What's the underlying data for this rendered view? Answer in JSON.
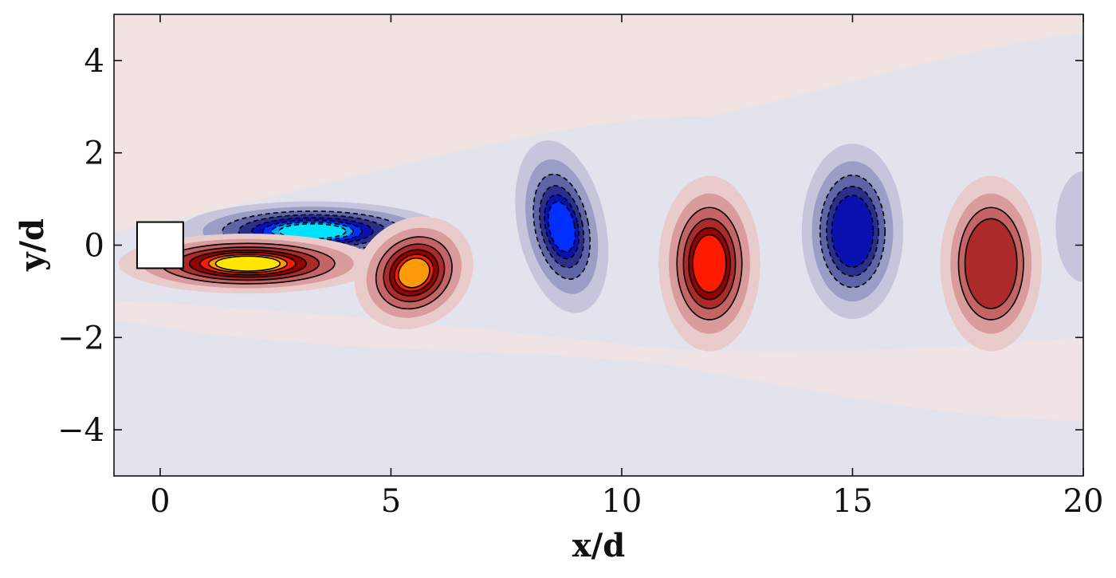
{
  "chart_data": {
    "type": "heatmap",
    "xlabel": "x/d",
    "ylabel": "y/d",
    "xlim": [
      -1,
      20
    ],
    "ylim": [
      -5,
      5
    ],
    "xticks": [
      0,
      5,
      10,
      15,
      20
    ],
    "xtick_labels": [
      "0",
      "5",
      "10",
      "15",
      "20"
    ],
    "yticks": [
      4,
      2,
      0,
      -2,
      -4
    ],
    "ytick_labels": [
      "4",
      "2",
      "0",
      "−2",
      "−4"
    ],
    "grid": false,
    "legend": "none",
    "obstacle": {
      "shape": "square",
      "x": [
        -0.5,
        0.5
      ],
      "y": [
        -0.5,
        0.5
      ]
    },
    "colors": {
      "positive_background": "#f2e3e3",
      "negative_background": "#e2e3ed",
      "positive_ramp": [
        "#e9cbcb",
        "#d99b9b",
        "#c46464",
        "#ad2a2a",
        "#950000",
        "#ff1a00",
        "#ff9a0a",
        "#ffe600"
      ],
      "negative_ramp": [
        "#c5c6dc",
        "#9a9dc5",
        "#5f64a6",
        "#2b2f8c",
        "#0b10b0",
        "#0030ff",
        "#00a8f0",
        "#00e0ff"
      ],
      "contour_line": "#000000"
    },
    "vortices": [
      {
        "sign": "negative",
        "x": 3.3,
        "y": 0.3,
        "peak": 8,
        "shape": "shear-layer-upper"
      },
      {
        "sign": "positive",
        "x": 1.9,
        "y": -0.4,
        "peak": 8,
        "shape": "shear-layer-lower"
      },
      {
        "sign": "positive",
        "x": 5.5,
        "y": -0.6,
        "peak": 7,
        "shape": "rolling"
      },
      {
        "sign": "negative",
        "x": 8.7,
        "y": 0.4,
        "peak": 6,
        "shape": "crescent"
      },
      {
        "sign": "positive",
        "x": 11.9,
        "y": -0.4,
        "peak": 6,
        "shape": "oval"
      },
      {
        "sign": "negative",
        "x": 15.0,
        "y": 0.3,
        "peak": 5,
        "shape": "oval"
      },
      {
        "sign": "positive",
        "x": 18.0,
        "y": -0.4,
        "peak": 4,
        "shape": "oval"
      },
      {
        "sign": "negative",
        "x": 20.0,
        "y": 0.4,
        "peak": 1,
        "shape": "partial"
      }
    ]
  }
}
